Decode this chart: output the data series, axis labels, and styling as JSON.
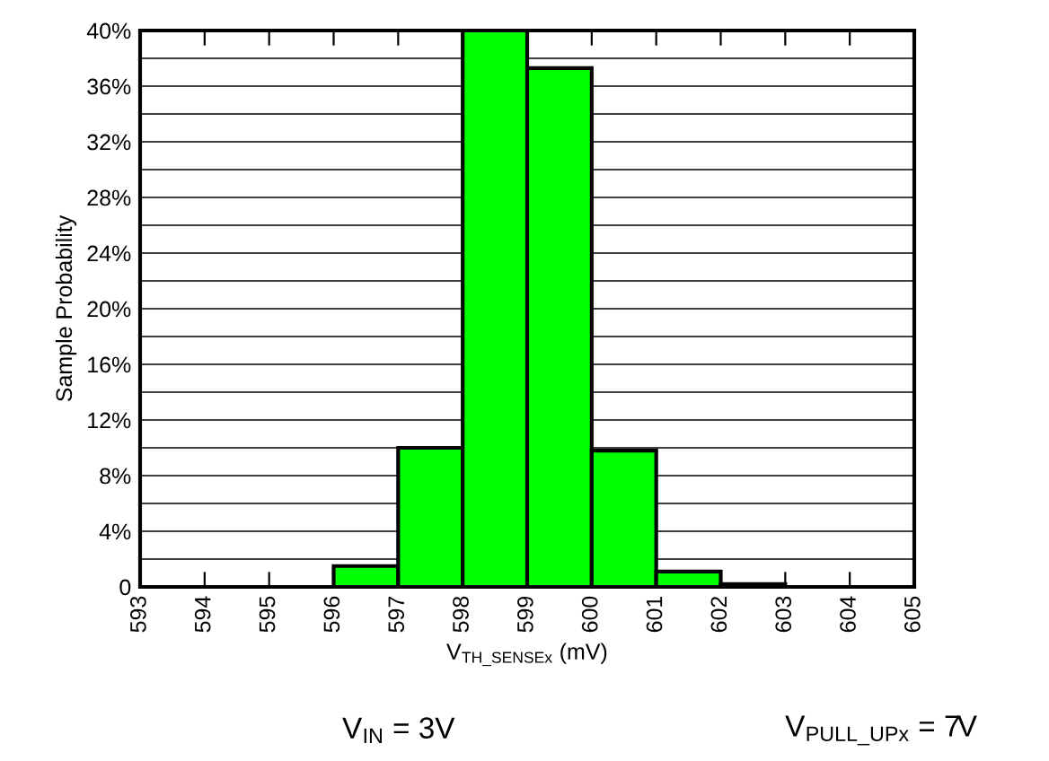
{
  "chart_data": {
    "type": "histogram",
    "xlabel": "V$_{TH_SENSEx}$ (mV)",
    "ylabel": "Sample Probability",
    "bins": [
      593,
      594,
      595,
      596,
      597,
      598,
      599,
      600,
      601,
      602,
      603,
      604,
      605
    ],
    "values": [
      0,
      0,
      0,
      1.5,
      10,
      40,
      37.3,
      9.8,
      1.1,
      0.2,
      0,
      0
    ],
    "color": "#00ff00",
    "xlim": [
      593,
      605
    ],
    "xticks": [
      593,
      594,
      595,
      596,
      597,
      598,
      599,
      600,
      601,
      602,
      603,
      604,
      605
    ],
    "ylim": [
      0,
      40
    ],
    "yticks": [
      {
        "value": 0,
        "label": "0"
      },
      {
        "value": 2,
        "label": null
      },
      {
        "value": 4,
        "label": "4%"
      },
      {
        "value": 6,
        "label": null
      },
      {
        "value": 8,
        "label": "8%"
      },
      {
        "value": 10,
        "label": null
      },
      {
        "value": 12,
        "label": "12%"
      },
      {
        "value": 14,
        "label": null
      },
      {
        "value": 16,
        "label": "16%"
      },
      {
        "value": 18,
        "label": null
      },
      {
        "value": 20,
        "label": "20%"
      },
      {
        "value": 22,
        "label": null
      },
      {
        "value": 24,
        "label": "24%"
      },
      {
        "value": 26,
        "label": null
      },
      {
        "value": 28,
        "label": "28%"
      },
      {
        "value": 30,
        "label": null
      },
      {
        "value": 32,
        "label": "32%"
      },
      {
        "value": 34,
        "label": null
      },
      {
        "value": 36,
        "label": "36%"
      },
      {
        "value": 38,
        "label": null
      },
      {
        "value": 40,
        "label": "40%"
      }
    ],
    "grid": "y",
    "annotations": [
      "V$_{IN}$ = 3V",
      "V$_{PULL_UPx}$ = 7V"
    ]
  }
}
